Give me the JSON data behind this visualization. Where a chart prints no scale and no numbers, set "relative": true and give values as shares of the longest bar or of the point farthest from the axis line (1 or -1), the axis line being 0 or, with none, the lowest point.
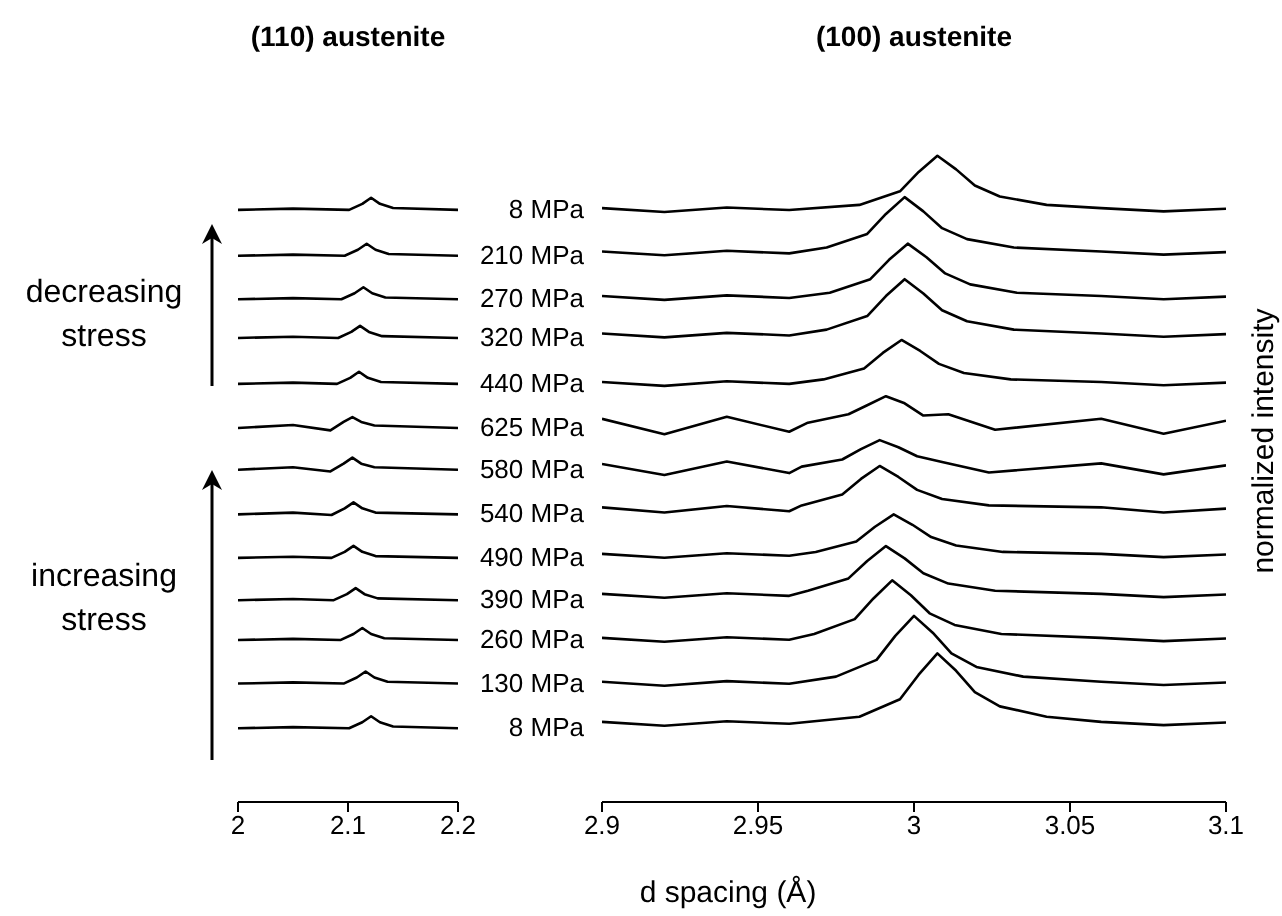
{
  "chart_data": [
    {
      "type": "line",
      "title": "(110) austenite",
      "relative": true,
      "marker": "none",
      "tick_labels": "x",
      "xlim": [
        2,
        2.2
      ],
      "xticks": [
        2,
        2.1,
        2.2
      ],
      "annotations": [
        "decreasing stress",
        "increasing stress"
      ],
      "series": [
        {
          "name": "8 MPa",
          "color": "#000000",
          "x": [
            2.0,
            2.05,
            2.101,
            2.113,
            2.121,
            2.129,
            2.141,
            2.2
          ],
          "values": [
            0.122,
            0.124,
            0.122,
            0.132,
            0.142,
            0.132,
            0.125,
            0.122
          ]
        },
        {
          "name": "130 MPa",
          "color": "#000000",
          "x": [
            2.0,
            2.05,
            2.096,
            2.108,
            2.116,
            2.124,
            2.136,
            2.2
          ],
          "values": [
            0.196,
            0.198,
            0.196,
            0.206,
            0.216,
            0.206,
            0.199,
            0.196
          ]
        },
        {
          "name": "260 MPa",
          "color": "#000000",
          "x": [
            2.0,
            2.05,
            2.093,
            2.105,
            2.113,
            2.121,
            2.133,
            2.2
          ],
          "values": [
            0.268,
            0.27,
            0.268,
            0.278,
            0.288,
            0.278,
            0.271,
            0.268
          ]
        },
        {
          "name": "390 MPa",
          "color": "#000000",
          "x": [
            2.0,
            2.05,
            2.087,
            2.099,
            2.107,
            2.115,
            2.127,
            2.2
          ],
          "values": [
            0.334,
            0.336,
            0.334,
            0.344,
            0.354,
            0.344,
            0.337,
            0.334
          ]
        },
        {
          "name": "490 MPa",
          "color": "#000000",
          "x": [
            2.0,
            2.05,
            2.085,
            2.097,
            2.105,
            2.113,
            2.125,
            2.2
          ],
          "values": [
            0.404,
            0.406,
            0.404,
            0.414,
            0.424,
            0.414,
            0.407,
            0.404
          ]
        },
        {
          "name": "540 MPa",
          "color": "#000000",
          "x": [
            2.0,
            2.05,
            2.085,
            2.097,
            2.105,
            2.113,
            2.125,
            2.2
          ],
          "values": [
            0.476,
            0.479,
            0.475,
            0.486,
            0.496,
            0.486,
            0.479,
            0.476
          ]
        },
        {
          "name": "580 MPa",
          "color": "#000000",
          "x": [
            2.0,
            2.05,
            2.084,
            2.096,
            2.104,
            2.112,
            2.124,
            2.2
          ],
          "values": [
            0.55,
            0.554,
            0.547,
            0.56,
            0.57,
            0.56,
            0.554,
            0.55
          ]
        },
        {
          "name": "625 MPa",
          "color": "#000000",
          "x": [
            2.0,
            2.05,
            2.084,
            2.096,
            2.104,
            2.112,
            2.124,
            2.2
          ],
          "values": [
            0.619,
            0.624,
            0.615,
            0.629,
            0.637,
            0.629,
            0.623,
            0.619
          ]
        },
        {
          "name": "440 MPa",
          "color": "#000000",
          "x": [
            2.0,
            2.05,
            2.09,
            2.102,
            2.11,
            2.118,
            2.13,
            2.2
          ],
          "values": [
            0.692,
            0.694,
            0.692,
            0.702,
            0.712,
            0.702,
            0.695,
            0.692
          ]
        },
        {
          "name": "320 MPa",
          "color": "#000000",
          "x": [
            2.0,
            2.05,
            2.091,
            2.103,
            2.111,
            2.119,
            2.131,
            2.2
          ],
          "values": [
            0.768,
            0.77,
            0.768,
            0.778,
            0.788,
            0.778,
            0.771,
            0.768
          ]
        },
        {
          "name": "270 MPa",
          "color": "#000000",
          "x": [
            2.0,
            2.05,
            2.094,
            2.106,
            2.114,
            2.122,
            2.134,
            2.2
          ],
          "values": [
            0.832,
            0.834,
            0.832,
            0.842,
            0.852,
            0.842,
            0.835,
            0.832
          ]
        },
        {
          "name": "210 MPa",
          "color": "#000000",
          "x": [
            2.0,
            2.05,
            2.097,
            2.109,
            2.117,
            2.125,
            2.137,
            2.2
          ],
          "values": [
            0.904,
            0.906,
            0.904,
            0.914,
            0.924,
            0.914,
            0.907,
            0.904
          ]
        },
        {
          "name": "8 MPa",
          "color": "#000000",
          "x": [
            2.0,
            2.05,
            2.101,
            2.113,
            2.121,
            2.129,
            2.141,
            2.2
          ],
          "values": [
            0.98,
            0.982,
            0.98,
            0.99,
            1.0,
            0.99,
            0.983,
            0.98
          ]
        }
      ]
    },
    {
      "type": "line",
      "title": "(100) austenite",
      "xlabel": "d spacing (Å)",
      "ylabel": "normalized intensity",
      "relative": true,
      "marker": "none",
      "tick_labels": "x",
      "xlim": [
        2.9,
        3.1
      ],
      "xticks": [
        2.9,
        2.95,
        3,
        3.05,
        3.1
      ],
      "series": [
        {
          "color": "#000000",
          "x": [
            2.9,
            2.92,
            2.94,
            2.96,
            2.9825,
            2.9955,
            3.0015,
            3.0075,
            3.0135,
            3.0195,
            3.0275,
            3.0425,
            3.06,
            3.08,
            3.1
          ],
          "values": [
            0.124,
            0.118,
            0.125,
            0.121,
            0.132,
            0.159,
            0.197,
            0.23,
            0.203,
            0.17,
            0.148,
            0.132,
            0.124,
            0.119,
            0.123
          ]
        },
        {
          "color": "#000000",
          "x": [
            2.9,
            2.92,
            2.94,
            2.96,
            2.975,
            2.988,
            2.994,
            3.0,
            3.006,
            3.012,
            3.02,
            3.035,
            3.06,
            3.08,
            3.1
          ],
          "values": [
            0.186,
            0.18,
            0.187,
            0.183,
            0.194,
            0.22,
            0.257,
            0.288,
            0.262,
            0.23,
            0.209,
            0.194,
            0.186,
            0.181,
            0.185
          ]
        },
        {
          "color": "#000000",
          "x": [
            2.9,
            2.92,
            2.94,
            2.96,
            2.968,
            2.981,
            2.987,
            2.993,
            2.999,
            3.005,
            3.013,
            3.028,
            3.06,
            3.08,
            3.1
          ],
          "values": [
            0.254,
            0.248,
            0.255,
            0.251,
            0.26,
            0.283,
            0.315,
            0.343,
            0.32,
            0.292,
            0.274,
            0.26,
            0.254,
            0.249,
            0.253
          ]
        },
        {
          "color": "#000000",
          "x": [
            2.9,
            2.92,
            2.94,
            2.96,
            2.966,
            2.979,
            2.985,
            2.991,
            2.997,
            3.003,
            3.011,
            3.026,
            3.06,
            3.08,
            3.1
          ],
          "values": [
            0.322,
            0.316,
            0.323,
            0.319,
            0.327,
            0.346,
            0.373,
            0.396,
            0.377,
            0.354,
            0.338,
            0.327,
            0.322,
            0.317,
            0.321
          ]
        },
        {
          "color": "#000000",
          "x": [
            2.9,
            2.92,
            2.94,
            2.96,
            2.9685,
            2.9815,
            2.9875,
            2.9935,
            2.9995,
            3.0055,
            3.0135,
            3.0285,
            3.06,
            3.08,
            3.1
          ],
          "values": [
            0.384,
            0.378,
            0.385,
            0.381,
            0.387,
            0.403,
            0.426,
            0.445,
            0.429,
            0.41,
            0.397,
            0.387,
            0.384,
            0.379,
            0.383
          ]
        },
        {
          "color": "#000000",
          "x": [
            2.9,
            2.92,
            2.94,
            2.96,
            2.964,
            2.977,
            2.983,
            2.989,
            2.995,
            3.001,
            3.009,
            3.024,
            3.06,
            3.08,
            3.1
          ],
          "values": [
            0.456,
            0.448,
            0.458,
            0.45,
            0.459,
            0.476,
            0.5,
            0.52,
            0.503,
            0.483,
            0.469,
            0.459,
            0.456,
            0.448,
            0.454
          ]
        },
        {
          "color": "#000000",
          "x": [
            2.9,
            2.92,
            2.94,
            2.96,
            2.964,
            2.977,
            2.983,
            2.989,
            2.995,
            3.001,
            3.009,
            3.024,
            3.06,
            3.08,
            3.1
          ],
          "values": [
            0.523,
            0.506,
            0.527,
            0.509,
            0.519,
            0.53,
            0.546,
            0.56,
            0.549,
            0.535,
            0.526,
            0.51,
            0.524,
            0.507,
            0.521
          ]
        },
        {
          "color": "#000000",
          "x": [
            2.9,
            2.92,
            2.94,
            2.96,
            2.966,
            2.979,
            2.985,
            2.991,
            2.997,
            3.003,
            3.011,
            3.026,
            3.06,
            3.08,
            3.1
          ],
          "values": [
            0.593,
            0.569,
            0.596,
            0.573,
            0.587,
            0.6,
            0.614,
            0.628,
            0.617,
            0.598,
            0.6,
            0.576,
            0.593,
            0.57,
            0.59
          ]
        },
        {
          "color": "#000000",
          "x": [
            2.9,
            2.92,
            2.94,
            2.96,
            2.971,
            2.984,
            2.99,
            2.996,
            3.002,
            3.008,
            3.016,
            3.031,
            3.06,
            3.08,
            3.1
          ],
          "values": [
            0.65,
            0.644,
            0.651,
            0.647,
            0.654,
            0.671,
            0.695,
            0.715,
            0.698,
            0.678,
            0.664,
            0.654,
            0.65,
            0.645,
            0.649
          ]
        },
        {
          "color": "#000000",
          "x": [
            2.9,
            2.92,
            2.94,
            2.96,
            2.972,
            2.985,
            2.991,
            2.997,
            3.003,
            3.009,
            3.017,
            3.032,
            3.06,
            3.08,
            3.1
          ],
          "values": [
            0.725,
            0.719,
            0.726,
            0.722,
            0.731,
            0.752,
            0.783,
            0.809,
            0.787,
            0.761,
            0.744,
            0.731,
            0.725,
            0.72,
            0.724
          ]
        },
        {
          "color": "#000000",
          "x": [
            2.9,
            2.92,
            2.94,
            2.96,
            2.973,
            2.986,
            2.992,
            2.998,
            3.004,
            3.01,
            3.018,
            3.033,
            3.06,
            3.08,
            3.1
          ],
          "values": [
            0.783,
            0.777,
            0.784,
            0.78,
            0.788,
            0.809,
            0.839,
            0.864,
            0.843,
            0.818,
            0.801,
            0.788,
            0.783,
            0.778,
            0.782
          ]
        },
        {
          "color": "#000000",
          "x": [
            2.9,
            2.92,
            2.94,
            2.96,
            2.972,
            2.985,
            2.991,
            2.997,
            3.003,
            3.009,
            3.017,
            3.032,
            3.06,
            3.08,
            3.1
          ],
          "values": [
            0.852,
            0.846,
            0.853,
            0.849,
            0.858,
            0.879,
            0.91,
            0.936,
            0.914,
            0.888,
            0.871,
            0.858,
            0.852,
            0.847,
            0.851
          ]
        },
        {
          "color": "#000000",
          "x": [
            2.9,
            2.92,
            2.94,
            2.96,
            2.9825,
            2.9955,
            3.0015,
            3.0075,
            3.0135,
            3.0195,
            3.0275,
            3.0425,
            3.06,
            3.08,
            3.1
          ],
          "values": [
            0.919,
            0.913,
            0.92,
            0.916,
            0.924,
            0.945,
            0.975,
            1.0,
            0.979,
            0.954,
            0.937,
            0.924,
            0.919,
            0.914,
            0.918
          ]
        }
      ]
    }
  ]
}
